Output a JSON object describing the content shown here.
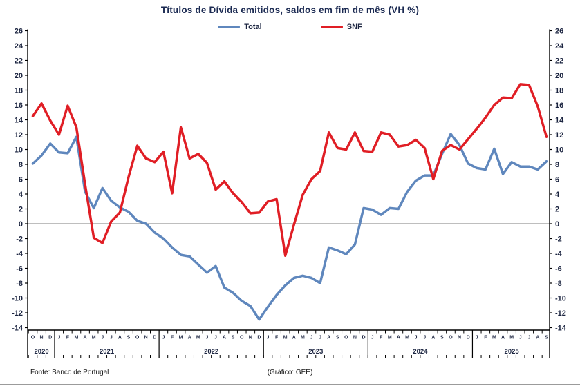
{
  "title": "Títulos de Dívida emitidos, saldos em fim de mês (VH %)",
  "legend": [
    {
      "label": "Total",
      "color": "#5f87bd"
    },
    {
      "label": "SNF",
      "color": "#e01e25"
    }
  ],
  "footer": {
    "source": "Fonte: Banco de Portugal",
    "credit": "(Gráfico: GEE)"
  },
  "chart_data": {
    "type": "line",
    "title": "Títulos de Dívida emitidos, saldos em fim de mês (VH %)",
    "ylabel": "",
    "xlabel": "",
    "ylim": [
      -14,
      26
    ],
    "ytick_step": 2,
    "grid": "zero-line-only",
    "legend_position": "top-center",
    "x_months": [
      "O",
      "N",
      "D",
      "J",
      "F",
      "M",
      "A",
      "M",
      "J",
      "J",
      "A",
      "S",
      "O",
      "N",
      "D",
      "J",
      "F",
      "M",
      "A",
      "M",
      "J",
      "J",
      "A",
      "S",
      "O",
      "N",
      "D",
      "J",
      "F",
      "M",
      "A",
      "M",
      "J",
      "J",
      "A",
      "S",
      "O",
      "N",
      "D",
      "J",
      "F",
      "M",
      "A",
      "M",
      "J",
      "J",
      "A",
      "S",
      "O",
      "N",
      "D",
      "J",
      "F",
      "M",
      "A",
      "M",
      "J",
      "J",
      "A",
      "S"
    ],
    "years": [
      {
        "label": "2020",
        "start": 0,
        "count": 3
      },
      {
        "label": "2021",
        "start": 3,
        "count": 12
      },
      {
        "label": "2022",
        "start": 15,
        "count": 12
      },
      {
        "label": "2023",
        "start": 27,
        "count": 12
      },
      {
        "label": "2024",
        "start": 39,
        "count": 12
      },
      {
        "label": "2025",
        "start": 51,
        "count": 9
      }
    ],
    "series": [
      {
        "name": "Total",
        "color": "#5f87bd",
        "values": [
          8.1,
          9.2,
          10.8,
          9.6,
          9.5,
          11.7,
          4.3,
          2.1,
          4.8,
          3.1,
          2.2,
          1.6,
          0.4,
          0.0,
          -1.2,
          -2.0,
          -3.2,
          -4.2,
          -4.4,
          -5.5,
          -6.6,
          -5.7,
          -8.6,
          -9.3,
          -10.4,
          -11.1,
          -12.9,
          -11.2,
          -9.6,
          -8.3,
          -7.3,
          -7.0,
          -7.3,
          -8.0,
          -3.2,
          -3.6,
          -4.1,
          -2.8,
          2.1,
          1.9,
          1.2,
          2.1,
          2.0,
          4.3,
          5.8,
          6.5,
          6.5,
          9.4,
          12.1,
          10.6,
          8.1,
          7.5,
          7.3,
          10.1,
          6.7,
          8.3,
          7.7,
          7.7,
          7.3,
          8.4
        ]
      },
      {
        "name": "SNF",
        "color": "#e01e25",
        "values": [
          14.5,
          16.2,
          13.9,
          12.0,
          15.9,
          13.0,
          5.3,
          -1.9,
          -2.6,
          0.3,
          1.5,
          6.3,
          10.5,
          8.8,
          8.3,
          9.7,
          4.1,
          13.0,
          8.8,
          9.4,
          8.2,
          4.6,
          5.7,
          4.1,
          2.9,
          1.4,
          1.5,
          3.0,
          3.3,
          -4.3,
          -0.1,
          3.9,
          6.0,
          7.1,
          12.3,
          10.2,
          10.0,
          12.3,
          9.8,
          9.7,
          12.3,
          12.0,
          10.4,
          10.6,
          11.3,
          10.2,
          6.0,
          9.8,
          10.6,
          10.0,
          11.4,
          12.8,
          14.3,
          16.0,
          17.0,
          16.9,
          18.8,
          18.7,
          15.8,
          11.7
        ]
      }
    ]
  }
}
